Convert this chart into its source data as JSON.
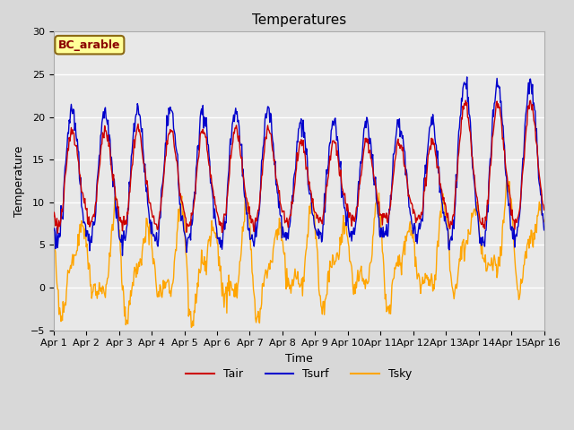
{
  "title": "Temperatures",
  "xlabel": "Time",
  "ylabel": "Temperature",
  "annotation_text": "BC_arable",
  "ylim": [
    -5,
    30
  ],
  "yticks": [
    -5,
    0,
    5,
    10,
    15,
    20,
    25,
    30
  ],
  "xtick_labels": [
    "Apr 1",
    "Apr 2",
    "Apr 3",
    "Apr 4",
    "Apr 5",
    "Apr 6",
    "Apr 7",
    "Apr 8",
    "Apr 9",
    "Apr 10",
    "Apr 11",
    "Apr 12",
    "Apr 13",
    "Apr 14",
    "Apr 15",
    "Apr 16"
  ],
  "color_tair": "#cc0000",
  "color_tsurf": "#0000cc",
  "color_tsky": "#FFA500",
  "bg_color": "#d8d8d8",
  "plot_bg_color": "#e8e8e8",
  "legend_labels": [
    "Tair",
    "Tsurf",
    "Tsky"
  ],
  "title_fontsize": 11,
  "axis_fontsize": 9,
  "tick_fontsize": 8,
  "annotation_fontcolor": "#8B0000",
  "annotation_bgcolor": "#FFFF99",
  "annotation_edgecolor": "#8B6914",
  "linewidth": 1.0
}
